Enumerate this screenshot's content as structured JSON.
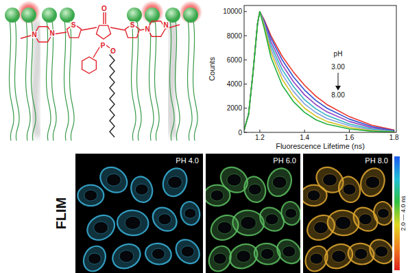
{
  "diagram": {
    "atoms": [
      "N",
      "N",
      "S",
      "O",
      "P",
      "O",
      "S",
      "N",
      "N"
    ]
  },
  "chart_data": {
    "type": "line",
    "x_label": "Fluorescence Lifetime (ns)",
    "y_label": "Counts",
    "annotations": [
      "pH",
      "3.00",
      "8.00"
    ],
    "x": [
      1.13,
      1.15,
      1.17,
      1.19,
      1.2,
      1.22,
      1.25,
      1.3,
      1.35,
      1.4,
      1.45,
      1.5,
      1.6,
      1.7,
      1.8
    ],
    "series": [
      {
        "color": "#e8332a",
        "values": [
          200,
          1500,
          5000,
          9000,
          10000,
          9300,
          8000,
          6300,
          5000,
          3900,
          3000,
          2300,
          1300,
          600,
          200
        ]
      },
      {
        "color": "#3050d0",
        "values": [
          200,
          1500,
          5000,
          9000,
          10000,
          9200,
          7800,
          6000,
          4600,
          3500,
          2650,
          2000,
          1100,
          480,
          150
        ]
      },
      {
        "color": "#9040c0",
        "values": [
          200,
          1500,
          5000,
          9000,
          10000,
          9100,
          7500,
          5600,
          4200,
          3100,
          2300,
          1700,
          900,
          380,
          120
        ]
      },
      {
        "color": "#30b0c0",
        "values": [
          200,
          1500,
          5000,
          9000,
          10000,
          9000,
          7200,
          5200,
          3800,
          2700,
          1950,
          1400,
          700,
          280,
          90
        ]
      },
      {
        "color": "#80a0e0",
        "values": [
          200,
          1500,
          5000,
          9000,
          10000,
          8900,
          6900,
          4800,
          3400,
          2350,
          1650,
          1150,
          550,
          200,
          60
        ]
      },
      {
        "color": "#d8c020",
        "values": [
          200,
          1500,
          5000,
          9000,
          10000,
          8800,
          6600,
          4400,
          3000,
          2000,
          1350,
          900,
          400,
          140,
          40
        ]
      },
      {
        "color": "#20b040",
        "values": [
          200,
          1500,
          5000,
          9000,
          10000,
          8600,
          6200,
          3900,
          2550,
          1650,
          1050,
          680,
          280,
          90,
          20
        ]
      }
    ],
    "xlim": [
      1.13,
      1.81
    ],
    "xticks": [
      1.2,
      1.4,
      1.6,
      1.8
    ],
    "ylim": [
      0,
      10500
    ],
    "yticks": [
      0,
      2000,
      4000,
      6000,
      8000,
      10000
    ],
    "grid": false
  },
  "flim": {
    "title": "FLIM",
    "panels": [
      {
        "label": "PH 4.0",
        "color": "#3ab4dc"
      },
      {
        "label": "PH 6.0",
        "color": "#5cc060"
      },
      {
        "label": "PH 8.0",
        "color": "#e0a830"
      }
    ],
    "color_bar": {
      "label": "2.0 — 4.0 ns",
      "colors": [
        "#1e5af0",
        "#20c0d8",
        "#30c040",
        "#e0d820",
        "#f08020",
        "#e02020"
      ]
    }
  }
}
